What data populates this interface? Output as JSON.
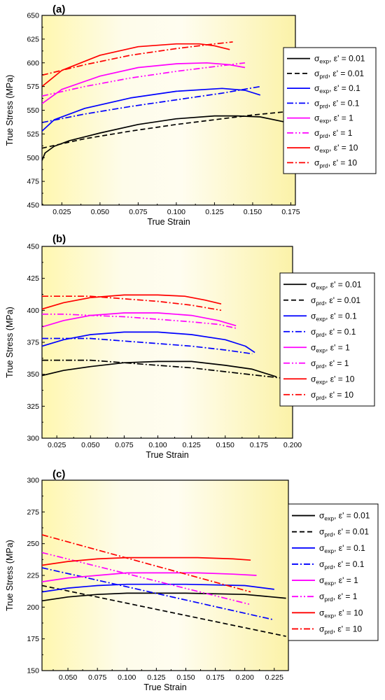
{
  "legend_entries": [
    {
      "sym": "exp",
      "rate": "0.01",
      "color": "#000000",
      "dash": "solid"
    },
    {
      "sym": "prd",
      "rate": "0.01",
      "color": "#000000",
      "dash": "dash"
    },
    {
      "sym": "exp",
      "rate": "0.1",
      "color": "#0000ff",
      "dash": "solid"
    },
    {
      "sym": "prd",
      "rate": "0.1",
      "color": "#0000ff",
      "dash": "dashdot"
    },
    {
      "sym": "exp",
      "rate": "1",
      "color": "#ff00ff",
      "dash": "solid"
    },
    {
      "sym": "prd",
      "rate": "1",
      "color": "#ff00ff",
      "dash": "dashdotdot"
    },
    {
      "sym": "exp",
      "rate": "10",
      "color": "#ff0000",
      "dash": "solid"
    },
    {
      "sym": "prd",
      "rate": "10",
      "color": "#ff0000",
      "dash": "dashdot"
    }
  ],
  "chart_data": [
    {
      "panel_label": "(a)",
      "type": "line",
      "xlabel": "True Strain",
      "ylabel": "True Stress (MPa)",
      "xlim": [
        0.012,
        0.178
      ],
      "ylim": [
        450,
        650
      ],
      "xticks": [
        "0.025",
        "0.050",
        "0.075",
        "0.100",
        "0.125",
        "0.150",
        "0.175"
      ],
      "xtick_values": [
        0.025,
        0.05,
        0.075,
        0.1,
        0.125,
        0.15,
        0.175
      ],
      "yticks": [
        "450",
        "475",
        "500",
        "525",
        "550",
        "575",
        "600",
        "625",
        "650"
      ],
      "ytick_values": [
        450,
        475,
        500,
        525,
        550,
        575,
        600,
        625,
        650
      ],
      "grid": false,
      "legend_position": "right",
      "series": [
        {
          "name": "σexp, ε' = 0.01",
          "color": "#000000",
          "dash": "solid",
          "x": [
            0.012,
            0.014,
            0.02,
            0.03,
            0.05,
            0.075,
            0.1,
            0.125,
            0.14,
            0.155,
            0.17
          ],
          "y": [
            497,
            505,
            512,
            518,
            526,
            535,
            541,
            544,
            544,
            543,
            538
          ]
        },
        {
          "name": "σprd, ε' = 0.01",
          "color": "#000000",
          "dash": "dash",
          "x": [
            0.012,
            0.04,
            0.07,
            0.1,
            0.13,
            0.15,
            0.175
          ],
          "y": [
            510,
            520,
            528,
            535,
            541,
            545,
            549
          ]
        },
        {
          "name": "σexp, ε' = 0.1",
          "color": "#0000ff",
          "dash": "solid",
          "x": [
            0.012,
            0.02,
            0.04,
            0.07,
            0.1,
            0.13,
            0.145,
            0.155
          ],
          "y": [
            528,
            540,
            552,
            563,
            570,
            573,
            571,
            566
          ]
        },
        {
          "name": "σprd, ε' = 0.1",
          "color": "#0000ff",
          "dash": "dashdot",
          "x": [
            0.012,
            0.04,
            0.07,
            0.1,
            0.13,
            0.155
          ],
          "y": [
            537,
            546,
            554,
            561,
            568,
            575
          ]
        },
        {
          "name": "σexp, ε' = 1",
          "color": "#ff00ff",
          "dash": "solid",
          "x": [
            0.012,
            0.025,
            0.05,
            0.075,
            0.1,
            0.12,
            0.135,
            0.145
          ],
          "y": [
            557,
            572,
            586,
            595,
            599,
            600,
            598,
            595
          ]
        },
        {
          "name": "σprd, ε' = 1",
          "color": "#ff00ff",
          "dash": "dashdotdot",
          "x": [
            0.012,
            0.04,
            0.07,
            0.1,
            0.13,
            0.145
          ],
          "y": [
            565,
            575,
            584,
            591,
            597,
            600
          ]
        },
        {
          "name": "σexp, ε' = 10",
          "color": "#ff0000",
          "dash": "solid",
          "x": [
            0.012,
            0.025,
            0.05,
            0.075,
            0.1,
            0.115,
            0.125,
            0.135
          ],
          "y": [
            575,
            592,
            608,
            617,
            620,
            620,
            618,
            614
          ]
        },
        {
          "name": "σprd, ε' = 10",
          "color": "#ff0000",
          "dash": "dashdot",
          "x": [
            0.012,
            0.04,
            0.07,
            0.1,
            0.125,
            0.137
          ],
          "y": [
            587,
            598,
            608,
            615,
            620,
            622
          ]
        }
      ]
    },
    {
      "panel_label": "(b)",
      "type": "line",
      "xlabel": "True Strain",
      "ylabel": "True Stress (MPa)",
      "xlim": [
        0.014,
        0.2
      ],
      "ylim": [
        300,
        450
      ],
      "xticks": [
        "0.025",
        "0.050",
        "0.075",
        "0.100",
        "0.125",
        "0.150",
        "0.175",
        "0.200"
      ],
      "xtick_values": [
        0.025,
        0.05,
        0.075,
        0.1,
        0.125,
        0.15,
        0.175,
        0.2
      ],
      "yticks": [
        "300",
        "325",
        "350",
        "375",
        "400",
        "425",
        "450"
      ],
      "ytick_values": [
        300,
        325,
        350,
        375,
        400,
        425,
        450
      ],
      "grid": false,
      "legend_position": "right",
      "series": [
        {
          "name": "σexp, ε' = 0.01",
          "color": "#000000",
          "dash": "solid",
          "x": [
            0.014,
            0.03,
            0.05,
            0.075,
            0.1,
            0.125,
            0.15,
            0.17,
            0.188
          ],
          "y": [
            349,
            353,
            356,
            359,
            360,
            360,
            357,
            354,
            348
          ]
        },
        {
          "name": "σprd, ε' = 0.01",
          "color": "#000000",
          "dash": "dashdot",
          "x": [
            0.014,
            0.03,
            0.05,
            0.075,
            0.1,
            0.125,
            0.15,
            0.175,
            0.192
          ],
          "y": [
            361,
            361,
            361,
            359,
            357,
            355,
            352,
            349,
            347
          ]
        },
        {
          "name": "σexp, ε' = 0.1",
          "color": "#0000ff",
          "dash": "solid",
          "x": [
            0.014,
            0.03,
            0.05,
            0.075,
            0.1,
            0.125,
            0.15,
            0.165,
            0.172
          ],
          "y": [
            372,
            377,
            381,
            383,
            383,
            381,
            377,
            372,
            367
          ]
        },
        {
          "name": "σprd, ε' = 0.1",
          "color": "#0000ff",
          "dash": "dashdot",
          "x": [
            0.014,
            0.03,
            0.05,
            0.075,
            0.1,
            0.125,
            0.15,
            0.17
          ],
          "y": [
            378,
            378,
            378,
            376,
            374,
            372,
            369,
            366
          ]
        },
        {
          "name": "σexp, ε' = 1",
          "color": "#ff00ff",
          "dash": "solid",
          "x": [
            0.014,
            0.03,
            0.05,
            0.075,
            0.1,
            0.125,
            0.145,
            0.158
          ],
          "y": [
            387,
            392,
            396,
            398,
            398,
            396,
            392,
            388
          ]
        },
        {
          "name": "σprd, ε' = 1",
          "color": "#ff00ff",
          "dash": "dashdotdot",
          "x": [
            0.014,
            0.03,
            0.05,
            0.075,
            0.1,
            0.125,
            0.145,
            0.158
          ],
          "y": [
            397,
            397,
            396,
            395,
            393,
            391,
            389,
            386
          ]
        },
        {
          "name": "σexp, ε' = 10",
          "color": "#ff0000",
          "dash": "solid",
          "x": [
            0.014,
            0.03,
            0.05,
            0.075,
            0.1,
            0.12,
            0.135,
            0.147
          ],
          "y": [
            401,
            406,
            410,
            412,
            412,
            411,
            408,
            405
          ]
        },
        {
          "name": "σprd, ε' = 10",
          "color": "#ff0000",
          "dash": "dashdot",
          "x": [
            0.014,
            0.03,
            0.05,
            0.075,
            0.1,
            0.125,
            0.147
          ],
          "y": [
            411,
            411,
            411,
            409,
            407,
            404,
            400
          ]
        }
      ]
    },
    {
      "panel_label": "(c)",
      "type": "line",
      "xlabel": "True Strain",
      "ylabel": "True Stress (MPa)",
      "xlim": [
        0.028,
        0.237
      ],
      "ylim": [
        150,
        300
      ],
      "xticks": [
        "0.050",
        "0.075",
        "0.100",
        "0.125",
        "0.150",
        "0.175",
        "0.200",
        "0.225"
      ],
      "xtick_values": [
        0.05,
        0.075,
        0.1,
        0.125,
        0.15,
        0.175,
        0.2,
        0.225
      ],
      "yticks": [
        "150",
        "175",
        "200",
        "225",
        "250",
        "275",
        "300"
      ],
      "ytick_values": [
        150,
        175,
        200,
        225,
        250,
        275,
        300
      ],
      "grid": false,
      "legend_position": "right",
      "series": [
        {
          "name": "σexp, ε' = 0.01",
          "color": "#000000",
          "dash": "solid",
          "x": [
            0.028,
            0.05,
            0.075,
            0.1,
            0.15,
            0.2,
            0.235
          ],
          "y": [
            205,
            208,
            210,
            211,
            211,
            210,
            207
          ]
        },
        {
          "name": "σprd, ε' = 0.01",
          "color": "#000000",
          "dash": "dash",
          "x": [
            0.028,
            0.235
          ],
          "y": [
            217,
            177
          ]
        },
        {
          "name": "σexp, ε' = 0.1",
          "color": "#0000ff",
          "dash": "solid",
          "x": [
            0.028,
            0.05,
            0.075,
            0.1,
            0.15,
            0.2,
            0.225
          ],
          "y": [
            212,
            215,
            217,
            218,
            218,
            217,
            214
          ]
        },
        {
          "name": "σprd, ε' = 0.1",
          "color": "#0000ff",
          "dash": "dashdot",
          "x": [
            0.028,
            0.225
          ],
          "y": [
            231,
            190
          ]
        },
        {
          "name": "σexp, ε' = 1",
          "color": "#ff00ff",
          "dash": "solid",
          "x": [
            0.028,
            0.05,
            0.075,
            0.1,
            0.13,
            0.16,
            0.19,
            0.21
          ],
          "y": [
            220,
            223,
            225,
            227,
            227,
            227,
            226,
            225
          ]
        },
        {
          "name": "σprd, ε' = 1",
          "color": "#ff00ff",
          "dash": "dashdotdot",
          "x": [
            0.028,
            0.205
          ],
          "y": [
            243,
            202
          ]
        },
        {
          "name": "σexp, ε' = 10",
          "color": "#ff0000",
          "dash": "solid",
          "x": [
            0.028,
            0.05,
            0.075,
            0.1,
            0.13,
            0.16,
            0.19,
            0.205
          ],
          "y": [
            233,
            236,
            238,
            239,
            239,
            239,
            238,
            237
          ]
        },
        {
          "name": "σprd, ε' = 10",
          "color": "#ff0000",
          "dash": "dashdot",
          "x": [
            0.028,
            0.205
          ],
          "y": [
            257,
            212
          ]
        }
      ]
    }
  ]
}
